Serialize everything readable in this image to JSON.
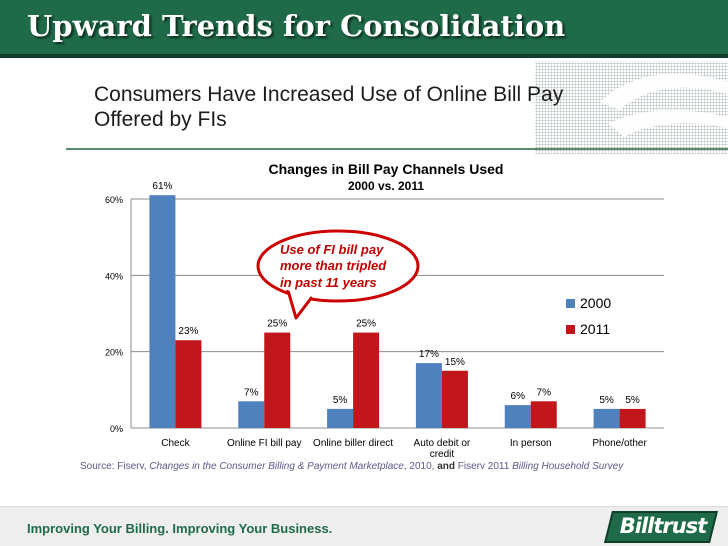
{
  "slide": {
    "title": "Upward Trends for Consolidation",
    "subtitle_line1": "Consumers Have Increased Use of Online Bill Pay",
    "subtitle_line2": "Offered by FIs"
  },
  "callout": {
    "line1": "Use of FI bill pay",
    "line2": "more than tripled",
    "line3": "in past 11 years",
    "fill_color": "#ffffff",
    "stroke_color": "#cc0000"
  },
  "source": {
    "prefix": "Source: Fiserv, ",
    "title1": "Changes in the Consumer Billing & Payment Marketplace",
    "mid": ", 2010, ",
    "and": "and",
    "suffix": " Fiserv 2011 ",
    "title2": "Billing Household Survey"
  },
  "footer": {
    "tagline": "Improving Your Billing.  Improving Your Business.",
    "logo_text": "Billtrust"
  },
  "colors": {
    "header_green": "#1f6b49",
    "series_2000": "#4f81bd",
    "series_2011": "#c0161c"
  },
  "chart_data": {
    "type": "bar",
    "title": "Changes in Bill Pay Channels Used",
    "subtitle": "2000 vs. 2011",
    "categories": [
      "Check",
      "Online FI bill pay",
      "Online biller direct",
      "Auto debit or credit",
      "In person",
      "Phone/other"
    ],
    "series": [
      {
        "name": "2000",
        "values": [
          61,
          7,
          5,
          17,
          6,
          5
        ],
        "labels": [
          "61%",
          "7%",
          "5%",
          "17%",
          "6%",
          "5%"
        ]
      },
      {
        "name": "2011",
        "values": [
          23,
          25,
          25,
          15,
          7,
          5
        ],
        "labels": [
          "23%",
          "25%",
          "25%",
          "15%",
          "7%",
          "5%"
        ]
      }
    ],
    "ylim": [
      0,
      60
    ],
    "yticks": [
      0,
      20,
      40,
      60
    ],
    "ytick_labels": [
      "0%",
      "20%",
      "40%",
      "60%"
    ],
    "grid": true,
    "legend": "right",
    "xlabel": "",
    "ylabel": ""
  }
}
